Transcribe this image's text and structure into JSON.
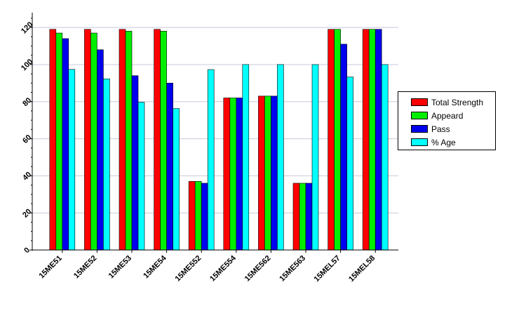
{
  "chart_data": {
    "type": "bar",
    "categories": [
      "15ME51",
      "15ME52",
      "15ME53",
      "15ME54",
      "15ME552",
      "15ME554",
      "15ME562",
      "15ME563",
      "15MEL57",
      "15MEL58"
    ],
    "series": [
      {
        "name": "Total Strength",
        "color": "#ff0000",
        "values": [
          119,
          119,
          119,
          119,
          37,
          82,
          83,
          36,
          119,
          119
        ]
      },
      {
        "name": "Appeard",
        "color": "#00ee00",
        "values": [
          117,
          117,
          118,
          118,
          37,
          82,
          83,
          36,
          119,
          119
        ]
      },
      {
        "name": "Pass",
        "color": "#0000ee",
        "values": [
          114,
          108,
          94,
          90,
          36,
          82,
          83,
          36,
          111,
          119
        ]
      },
      {
        "name": "% Age",
        "color": "#00ffff",
        "values": [
          97.4,
          92.3,
          79.7,
          76.3,
          97.3,
          100,
          100,
          100,
          93.3,
          100
        ]
      }
    ],
    "y_ticks": [
      "0",
      "20",
      "40",
      "60",
      "80",
      "100",
      "120"
    ],
    "ylim": [
      0,
      128
    ],
    "grid": true,
    "legend_position": "right"
  }
}
